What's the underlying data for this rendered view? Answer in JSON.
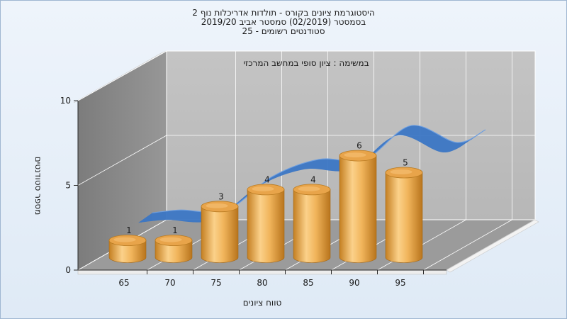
{
  "chart_data": {
    "type": "bar",
    "title_lines": [
      "היסטוגרמת ציונים בקורס - תולדות אדריכלות נוף 2",
      "בסמסטר  (02/2019)  סמסטר אביב 2019/20",
      "סטודנטים רשומים - 25"
    ],
    "annotation": "במשימה : ציון סופי במחשב המרכזי",
    "categories": [
      "65",
      "70",
      "75",
      "80",
      "85",
      "90",
      "95"
    ],
    "values": [
      1,
      1,
      3,
      4,
      4,
      6,
      5
    ],
    "data_labels": [
      "1",
      "1",
      "3",
      "4",
      "4",
      "6",
      "5"
    ],
    "ylim": [
      0,
      10
    ],
    "yticks": [
      "0",
      "5",
      "10"
    ],
    "xlabel": "טווח ציונים",
    "ylabel": "מספר סטודנטים",
    "grid": true,
    "style": "3d-cylinder",
    "colors": {
      "bar": "#e9a84a",
      "bar_dark": "#c07d1f",
      "bar_light": "#fbd89a",
      "trend": "#3b76c4",
      "back_wall": "#c9c9c9",
      "left_wall": "#8a8a8a",
      "floor": "#9a9a9a"
    }
  }
}
